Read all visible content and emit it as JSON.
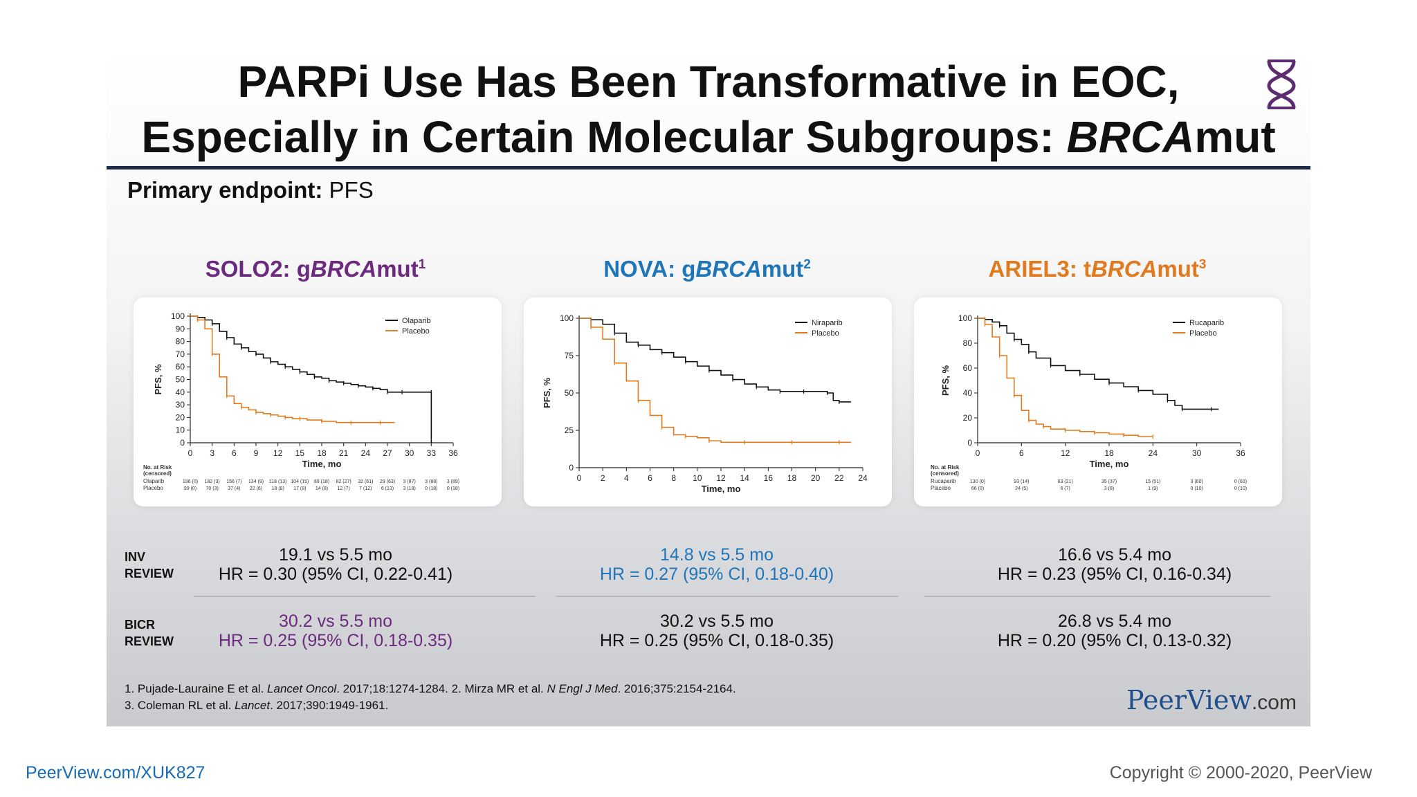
{
  "header": {
    "title_line1": "PARPi Use Has Been Transformative in EOC,",
    "title_line2_pre": "Especially in Certain Molecular Subgroups: ",
    "title_line2_ital": "BRCA",
    "title_line2_post": "mut",
    "endpoint_label": "Primary endpoint:",
    "endpoint_value": "PFS"
  },
  "trials": [
    {
      "name": "SOLO2: g",
      "ital": "BRCA",
      "post": "mut",
      "sup": "1",
      "color": "#6b2a7e"
    },
    {
      "name": "NOVA: g",
      "ital": "BRCA",
      "post": "mut",
      "sup": "2",
      "color": "#1e76b9"
    },
    {
      "name": "ARIEL3: t",
      "ital": "BRCA",
      "post": "mut",
      "sup": "3",
      "color": "#e07a1f"
    }
  ],
  "results": {
    "inv_label_1": "INV",
    "inv_label_2": "REVIEW",
    "bicr_label_1": "BICR",
    "bicr_label_2": "REVIEW",
    "inv": [
      {
        "line1": "19.1 vs 5.5 mo",
        "line2": "HR = 0.30 (95% CI, 0.22-0.41)",
        "color": "#111111"
      },
      {
        "line1": "14.8 vs 5.5 mo",
        "line2": "HR = 0.27 (95% CI, 0.18-0.40)",
        "color": "#1e76b9"
      },
      {
        "line1": "16.6 vs 5.4 mo",
        "line2": "HR = 0.23 (95% CI, 0.16-0.34)",
        "color": "#111111"
      }
    ],
    "bicr": [
      {
        "line1": "30.2 vs 5.5 mo",
        "line2": "HR = 0.25 (95% CI, 0.18-0.35)",
        "color": "#6b2a7e"
      },
      {
        "line1": "30.2 vs 5.5 mo",
        "line2": "HR = 0.25 (95% CI, 0.18-0.35)",
        "color": "#111111"
      },
      {
        "line1": "26.8 vs 5.4 mo",
        "line2": "HR = 0.20 (95% CI, 0.13-0.32)",
        "color": "#111111"
      }
    ]
  },
  "references": {
    "line1_a": "1. Pujade-Lauraine E et al. ",
    "line1_b": "Lancet Oncol",
    "line1_c": ". 2017;18:1274-1284. 2. Mirza MR et al. ",
    "line1_d": "N Engl J Med",
    "line1_e": ". 2016;375:2154-2164.",
    "line2_a": "3. Coleman RL et al. ",
    "line2_b": "Lancet",
    "line2_c": ". 2017;390:1949-1961."
  },
  "footer": {
    "logo_main": "PeerView",
    "logo_suffix": ".com",
    "link": "PeerView.com/XUK827",
    "copyright": "Copyright © 2000-2020, PeerView"
  },
  "chart_data": [
    {
      "type": "line",
      "xlabel": "Time, mo",
      "ylabel": "PFS, %",
      "xlim": [
        0,
        36
      ],
      "ylim": [
        0,
        100
      ],
      "xticks": [
        0,
        3,
        6,
        9,
        12,
        15,
        18,
        21,
        24,
        27,
        30,
        33,
        36
      ],
      "yticks": [
        0,
        10,
        20,
        30,
        40,
        50,
        60,
        70,
        80,
        90,
        100
      ],
      "legend_position": "top-right",
      "series": [
        {
          "name": "Olaparib",
          "color": "#111111",
          "x": [
            0,
            1,
            2,
            3,
            4,
            5,
            6,
            7,
            8,
            9,
            10,
            11,
            12,
            13,
            14,
            15,
            16,
            17,
            18,
            19,
            20,
            21,
            22,
            23,
            24,
            25,
            26,
            27,
            28,
            29,
            30,
            33,
            33
          ],
          "y": [
            100,
            99,
            97,
            94,
            88,
            83,
            78,
            75,
            72,
            70,
            67,
            64,
            62,
            60,
            58,
            56,
            54,
            52,
            51,
            49,
            48,
            47,
            46,
            45,
            44,
            43,
            42,
            40,
            40,
            40,
            40,
            40,
            0
          ]
        },
        {
          "name": "Placebo",
          "color": "#e07a1f",
          "x": [
            0,
            1,
            2,
            3,
            4,
            5,
            6,
            7,
            8,
            9,
            10,
            11,
            12,
            13,
            14,
            15,
            16,
            18,
            20,
            22,
            24,
            26,
            28
          ],
          "y": [
            100,
            97,
            90,
            70,
            52,
            37,
            31,
            28,
            26,
            24,
            23,
            22,
            21,
            20,
            19,
            19,
            18,
            17,
            16,
            16,
            16,
            16,
            16
          ]
        }
      ],
      "risk_table": {
        "header": [
          "No. at Risk",
          "(censored)"
        ],
        "rows": [
          {
            "label": "Olaparib",
            "values": [
              "196 (0)",
              "182 (3)",
              "156 (7)",
              "134 (9)",
              "118 (13)",
              "104 (15)",
              "89 (18)",
              "82 (27)",
              "32 (61)",
              "29 (63)",
              "3 (87)",
              "3 (88)",
              "3 (89)"
            ]
          },
          {
            "label": "Placebo",
            "values": [
              "99 (0)",
              "70 (3)",
              "37 (4)",
              "22 (6)",
              "18 (8)",
              "17 (8)",
              "14 (8)",
              "12 (7)",
              "7 (12)",
              "6 (13)",
              "3 (18)",
              "0 (18)",
              "0 (18)"
            ]
          }
        ]
      }
    },
    {
      "type": "line",
      "xlabel": "Time, mo",
      "ylabel": "PFS, %",
      "xlim": [
        0,
        24
      ],
      "ylim": [
        0,
        100
      ],
      "xticks": [
        0,
        2,
        4,
        6,
        8,
        10,
        12,
        14,
        16,
        18,
        20,
        22,
        24
      ],
      "yticks": [
        0,
        25,
        50,
        75,
        100
      ],
      "legend_position": "top-right",
      "series": [
        {
          "name": "Niraparib",
          "color": "#111111",
          "x": [
            0,
            1,
            2,
            3,
            4,
            5,
            6,
            7,
            8,
            9,
            10,
            11,
            12,
            13,
            14,
            15,
            16,
            17,
            18,
            19,
            20,
            21,
            21.5,
            22,
            23
          ],
          "y": [
            100,
            99,
            96,
            90,
            84,
            82,
            79,
            77,
            74,
            71,
            68,
            65,
            62,
            59,
            56,
            54,
            52,
            51,
            51,
            51,
            51,
            50,
            45,
            44,
            44
          ]
        },
        {
          "name": "Placebo",
          "color": "#e07a1f",
          "x": [
            0,
            1,
            2,
            3,
            4,
            5,
            6,
            7,
            8,
            9,
            10,
            11,
            12,
            14,
            16,
            18,
            20,
            22,
            23
          ],
          "y": [
            100,
            94,
            86,
            70,
            58,
            45,
            35,
            27,
            22,
            21,
            20,
            18,
            17,
            17,
            17,
            17,
            17,
            17,
            17
          ]
        }
      ]
    },
    {
      "type": "line",
      "xlabel": "Time, mo",
      "ylabel": "PFS, %",
      "xlim": [
        0,
        36
      ],
      "ylim": [
        0,
        100
      ],
      "xticks": [
        0,
        6,
        12,
        18,
        24,
        30,
        36
      ],
      "yticks": [
        0,
        20,
        40,
        60,
        80,
        100
      ],
      "legend_position": "top-right",
      "series": [
        {
          "name": "Rucaparib",
          "color": "#111111",
          "x": [
            0,
            1,
            2,
            3,
            4,
            5,
            6,
            7,
            8,
            10,
            12,
            14,
            16,
            18,
            20,
            22,
            24,
            26,
            27,
            28,
            30,
            32,
            33
          ],
          "y": [
            100,
            99,
            97,
            94,
            88,
            83,
            79,
            73,
            68,
            62,
            58,
            55,
            51,
            48,
            45,
            42,
            39,
            34,
            30,
            27,
            27,
            27,
            27
          ]
        },
        {
          "name": "Placebo",
          "color": "#e07a1f",
          "x": [
            0,
            1,
            2,
            3,
            4,
            5,
            6,
            7,
            8,
            9,
            10,
            12,
            14,
            16,
            18,
            20,
            22,
            24
          ],
          "y": [
            100,
            95,
            85,
            70,
            52,
            38,
            26,
            18,
            15,
            13,
            11,
            10,
            9,
            8,
            7,
            6,
            5,
            5
          ]
        }
      ],
      "risk_table": {
        "header": [
          "No. at Risk",
          "(censored)"
        ],
        "rows": [
          {
            "label": "Rucaparib",
            "values": [
              "130 (0)",
              "93 (14)",
              "63 (21)",
              "35 (37)",
              "15 (51)",
              "3 (60)",
              "0 (63)"
            ]
          },
          {
            "label": "Placebo",
            "values": [
              "66 (0)",
              "24 (5)",
              "6 (7)",
              "3 (8)",
              "1 (9)",
              "0 (10)",
              "0 (10)"
            ]
          }
        ]
      }
    }
  ]
}
